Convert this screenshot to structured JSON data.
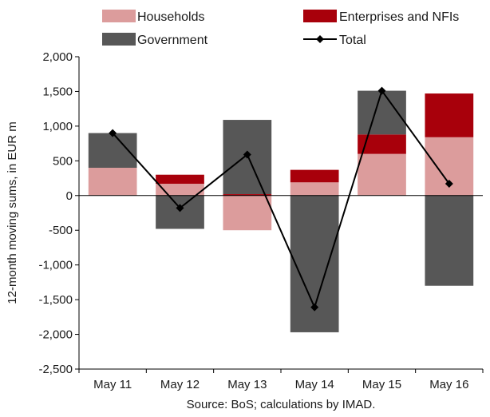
{
  "chart_data": {
    "type": "bar",
    "stacked": true,
    "categories": [
      "May 11",
      "May 12",
      "May 13",
      "May 14",
      "May 15",
      "May 16"
    ],
    "series": [
      {
        "name": "Households",
        "type": "bar",
        "color": "#dc9c9c",
        "values": [
          400,
          170,
          -500,
          190,
          600,
          840
        ]
      },
      {
        "name": "Enterprises and NFIs",
        "type": "bar",
        "color": "#a8000b",
        "values": [
          0,
          130,
          20,
          180,
          280,
          630
        ]
      },
      {
        "name": "Government",
        "type": "bar",
        "color": "#575757",
        "values": [
          500,
          -480,
          1070,
          -1970,
          630,
          -1300
        ]
      },
      {
        "name": "Total",
        "type": "line",
        "color": "#000000",
        "marker": "diamond",
        "values": [
          900,
          -180,
          590,
          -1610,
          1510,
          170
        ]
      }
    ],
    "ylabel": "12-month moving sums, in EUR m",
    "xlabel": "",
    "ylim": [
      -2500,
      2000
    ],
    "yticks": [
      2000,
      1500,
      1000,
      500,
      0,
      -500,
      -1000,
      -1500,
      -2000,
      -2500
    ],
    "ytick_labels": [
      "2,000",
      "1,500",
      "1,000",
      "500",
      "0",
      "-500",
      "-1,000",
      "-1,500",
      "-2,000",
      "-2,500"
    ],
    "grid": false,
    "legend_position": "top",
    "source": "Source: BoS; calculations by IMAD."
  }
}
